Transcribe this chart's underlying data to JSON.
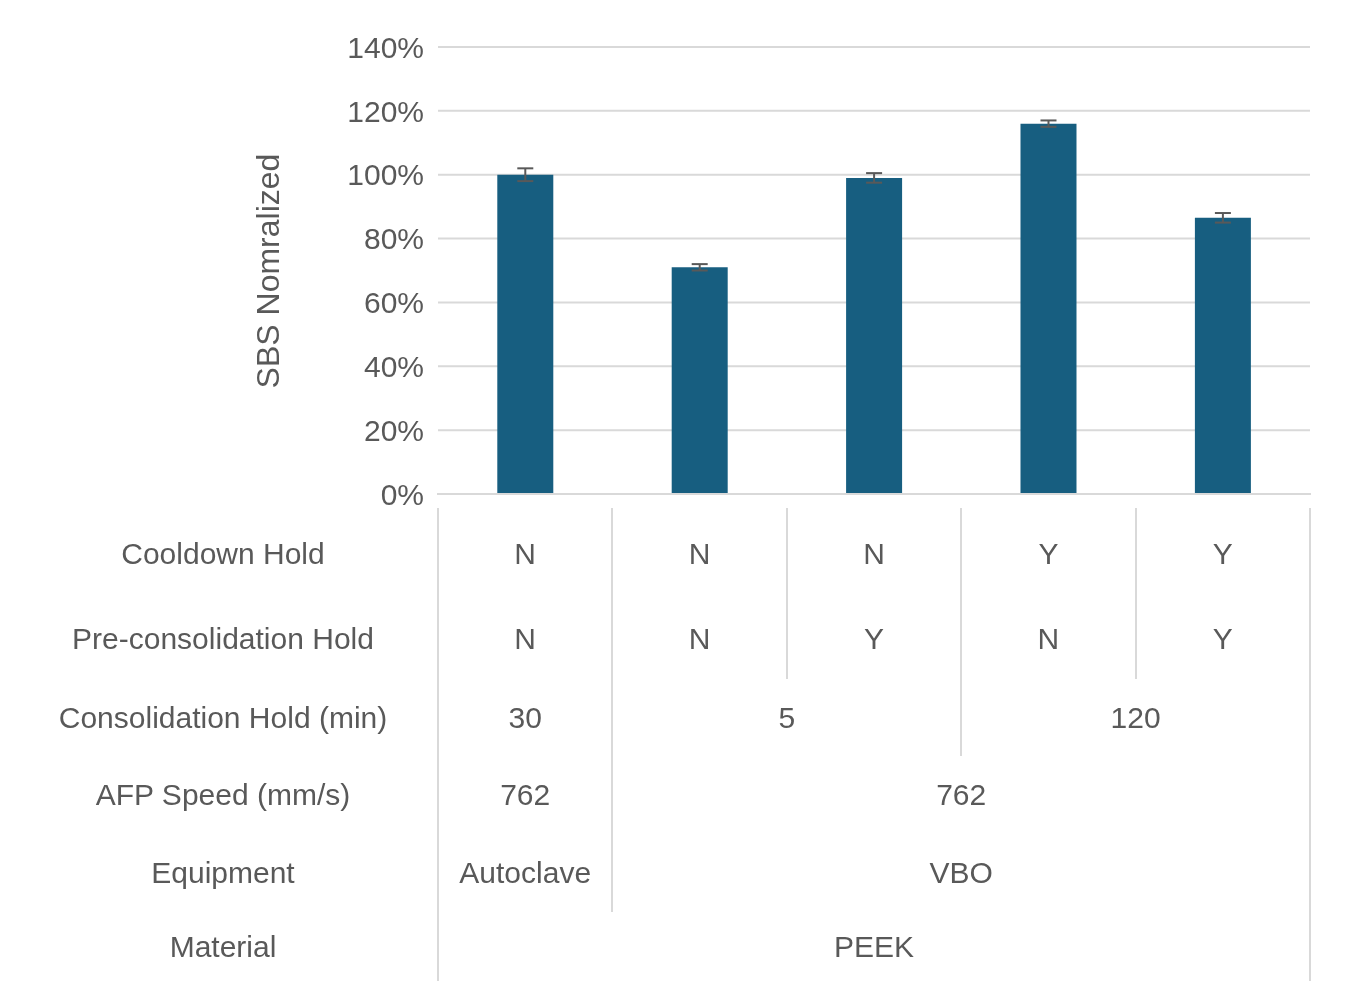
{
  "chart_data": {
    "type": "bar",
    "ylabel": "SBS Nomralized",
    "categories": [
      "N",
      "N",
      "N",
      "Y",
      "Y"
    ],
    "values": [
      100,
      71,
      99,
      116,
      86.5
    ],
    "errors": [
      2,
      1,
      1.5,
      1,
      1.5
    ],
    "color": "#175e80",
    "ylim": [
      0,
      140
    ],
    "yticks": [
      {
        "value": 0,
        "label": "0%"
      },
      {
        "value": 20,
        "label": "20%"
      },
      {
        "value": 40,
        "label": "40%"
      },
      {
        "value": 60,
        "label": "60%"
      },
      {
        "value": 80,
        "label": "80%"
      },
      {
        "value": 100,
        "label": "100%"
      },
      {
        "value": 120,
        "label": "120%"
      },
      {
        "value": 140,
        "label": "140%"
      }
    ],
    "grid": "y",
    "annotations": [
      "Cooldown Hold",
      "Pre-consolidation Hold",
      "N",
      "N",
      "Y",
      "N",
      "Y",
      "Consolidation Hold (min)",
      "30",
      "5",
      "120",
      "AFP Speed (mm/s)",
      "762",
      "762",
      "Equipment",
      "Autoclave",
      "VBO",
      "Material",
      "PEEK"
    ]
  }
}
